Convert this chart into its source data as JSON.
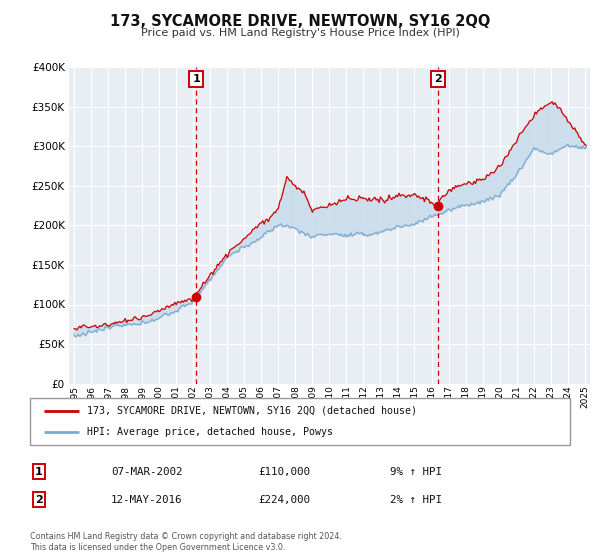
{
  "title": "173, SYCAMORE DRIVE, NEWTOWN, SY16 2QQ",
  "subtitle": "Price paid vs. HM Land Registry's House Price Index (HPI)",
  "legend_line1": "173, SYCAMORE DRIVE, NEWTOWN, SY16 2QQ (detached house)",
  "legend_line2": "HPI: Average price, detached house, Powys",
  "footer1": "Contains HM Land Registry data © Crown copyright and database right 2024.",
  "footer2": "This data is licensed under the Open Government Licence v3.0.",
  "sale1_label": "1",
  "sale1_date": "07-MAR-2002",
  "sale1_price": "£110,000",
  "sale1_hpi": "9% ↑ HPI",
  "sale2_label": "2",
  "sale2_date": "12-MAY-2016",
  "sale2_price": "£224,000",
  "sale2_hpi": "2% ↑ HPI",
  "sale1_year": 2002.17,
  "sale1_value": 110000,
  "sale2_year": 2016.37,
  "sale2_value": 224000,
  "vline1_year": 2002.17,
  "vline2_year": 2016.37,
  "red_color": "#cc0000",
  "blue_line_color": "#7baad0",
  "fill_color": "#c8daea",
  "grid_color": "#ffffff",
  "bg_color": "#e8eef4",
  "ylim": [
    0,
    400000
  ],
  "xlim_start": 1994.7,
  "xlim_end": 2025.3,
  "yticks": [
    0,
    50000,
    100000,
    150000,
    200000,
    250000,
    300000,
    350000,
    400000
  ],
  "xticks": [
    1995,
    1996,
    1997,
    1998,
    1999,
    2000,
    2001,
    2002,
    2003,
    2004,
    2005,
    2006,
    2007,
    2008,
    2009,
    2010,
    2011,
    2012,
    2013,
    2014,
    2015,
    2016,
    2017,
    2018,
    2019,
    2020,
    2021,
    2022,
    2023,
    2024,
    2025
  ]
}
